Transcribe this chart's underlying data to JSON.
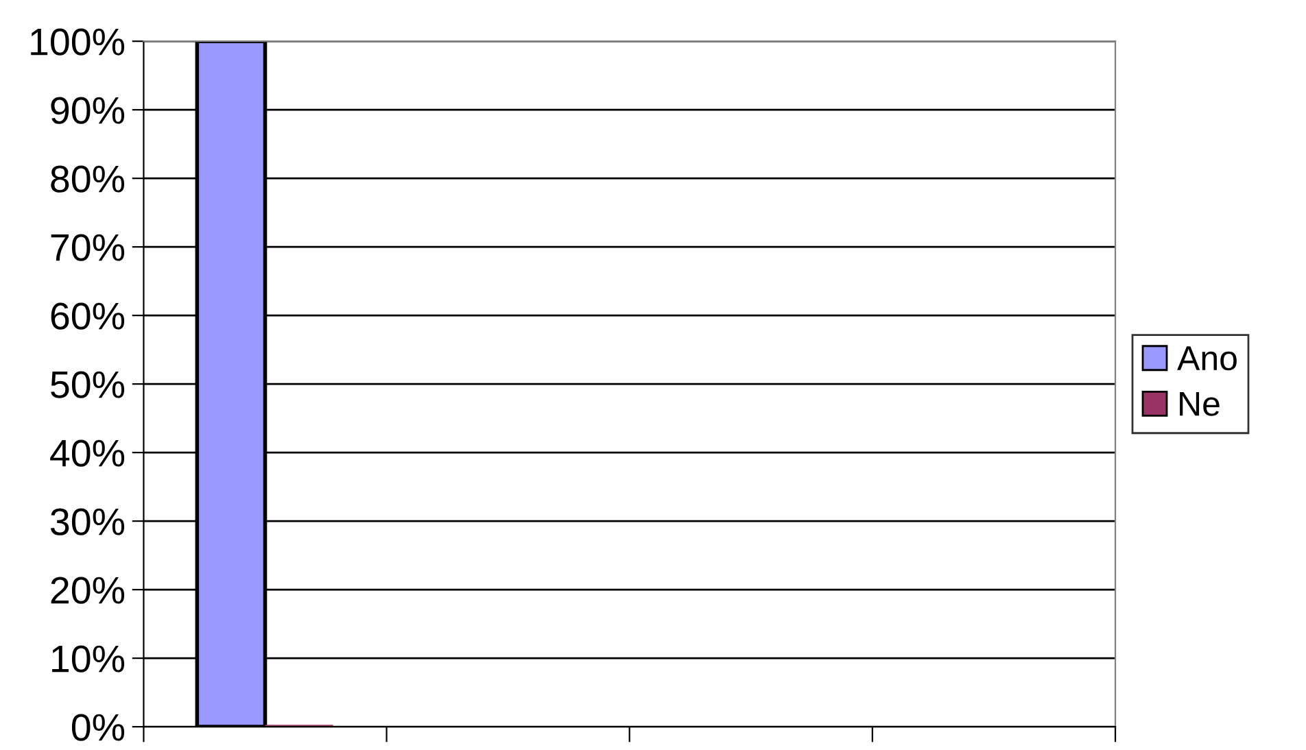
{
  "chart_data": {
    "type": "bar",
    "categories": [
      null,
      null,
      null,
      null
    ],
    "series": [
      {
        "name": "Ano",
        "color": "#9999ff",
        "values": [
          100,
          null,
          null,
          null
        ]
      },
      {
        "name": "Ne",
        "color": "#993366",
        "values": [
          0,
          null,
          null,
          null
        ]
      }
    ],
    "ylim": [
      0,
      100
    ],
    "yticks": [
      {
        "value": 0,
        "label": "0%"
      },
      {
        "value": 10,
        "label": "10%"
      },
      {
        "value": 20,
        "label": "20%"
      },
      {
        "value": 30,
        "label": "30%"
      },
      {
        "value": 40,
        "label": "40%"
      },
      {
        "value": 50,
        "label": "50%"
      },
      {
        "value": 60,
        "label": "60%"
      },
      {
        "value": 70,
        "label": "70%"
      },
      {
        "value": 80,
        "label": "80%"
      },
      {
        "value": 90,
        "label": "90%"
      },
      {
        "value": 100,
        "label": "100%"
      }
    ],
    "grid": "y",
    "legend": "right"
  }
}
